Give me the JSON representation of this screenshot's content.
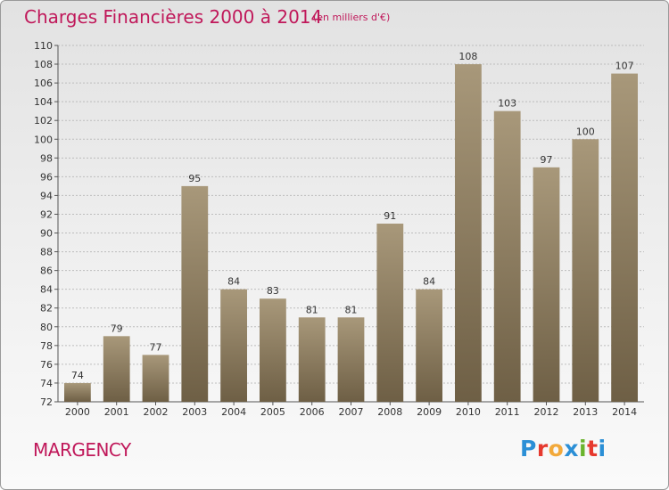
{
  "header": {
    "title": "Charges Financières 2000 à 2014",
    "subtitle": "(en milliers d'€)"
  },
  "footer": {
    "commune": "MARGENCY",
    "logo_text": "Proxiti",
    "logo_colors": [
      "#2b8fd6",
      "#e6392e",
      "#f2a93b",
      "#2b8fd6",
      "#6ab42d",
      "#e6392e",
      "#2b8fd6"
    ]
  },
  "colors": {
    "bar_top": "#a8987a",
    "bar_bottom": "#6e5f45",
    "grid": "#bdbdbd",
    "title": "#c0185a"
  },
  "chart_data": {
    "type": "bar",
    "title": "Charges Financières 2000 à 2014",
    "subtitle": "(en milliers d'€)",
    "categories": [
      "2000",
      "2001",
      "2002",
      "2003",
      "2004",
      "2005",
      "2006",
      "2007",
      "2008",
      "2009",
      "2010",
      "2011",
      "2012",
      "2013",
      "2014"
    ],
    "values": [
      74,
      79,
      77,
      95,
      84,
      83,
      81,
      81,
      91,
      84,
      108,
      103,
      97,
      100,
      107
    ],
    "ylim": [
      72,
      110
    ],
    "ytick_step": 2,
    "grid": true,
    "data_labels": true
  }
}
